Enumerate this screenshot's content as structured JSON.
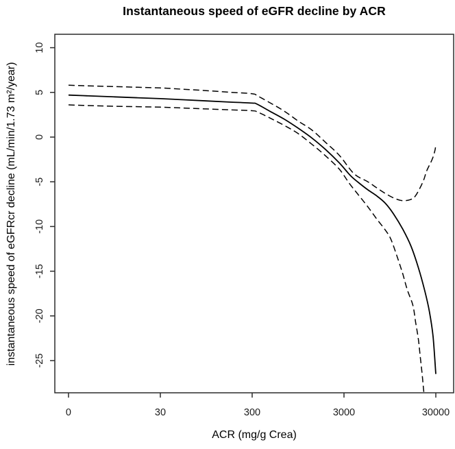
{
  "chart_data": {
    "type": "line",
    "title": "Instantaneous speed of eGFR decline by ACR",
    "xlabel": "ACR (mg/g Crea)",
    "ylabel": "instantaneous speed of eGFRcr decline (mL/min/1.73 m²/year)",
    "grid": false,
    "legend": null,
    "colors": {
      "line": "#000000",
      "box": "#2a2a2a",
      "background": "#ffffff"
    },
    "x_axis": {
      "scale": "log-like, one decade per tick step, equal spacing",
      "tick_labels": [
        "0",
        "30",
        "300",
        "3000",
        "30000"
      ],
      "tick_positions": [
        0,
        1,
        2,
        3,
        4
      ],
      "view_range": [
        -0.149,
        4.194
      ]
    },
    "y_axis": {
      "tick_labels": [
        "10",
        "5",
        "0",
        "-5",
        "-10",
        "-15",
        "-20",
        "-25"
      ],
      "tick_values": [
        10,
        5,
        0,
        -5,
        -10,
        -15,
        -20,
        -25
      ],
      "view_range": [
        -28.6,
        11.5
      ]
    },
    "series": [
      {
        "name": "estimate",
        "style": "solid",
        "points": [
          [
            0,
            4.7
          ],
          [
            0.25,
            4.6
          ],
          [
            0.5,
            4.5
          ],
          [
            0.75,
            4.4
          ],
          [
            1,
            4.3
          ],
          [
            1.25,
            4.18
          ],
          [
            1.5,
            4.05
          ],
          [
            1.75,
            3.92
          ],
          [
            2,
            3.8
          ],
          [
            2.05,
            3.7
          ],
          [
            2.2,
            2.85
          ],
          [
            2.35,
            2.0
          ],
          [
            2.5,
            1.0
          ],
          [
            2.65,
            -0.1
          ],
          [
            2.8,
            -1.4
          ],
          [
            2.95,
            -2.9
          ],
          [
            3.07,
            -4.3
          ],
          [
            3.16,
            -5.1
          ],
          [
            3.26,
            -5.9
          ],
          [
            3.36,
            -6.6
          ],
          [
            3.45,
            -7.4
          ],
          [
            3.54,
            -8.6
          ],
          [
            3.64,
            -10.3
          ],
          [
            3.73,
            -12.2
          ],
          [
            3.81,
            -14.6
          ],
          [
            3.88,
            -17.2
          ],
          [
            3.93,
            -19.5
          ],
          [
            3.97,
            -22.3
          ],
          [
            4,
            -26.5
          ]
        ]
      },
      {
        "name": "upper confidence band",
        "style": "dashed",
        "points": [
          [
            0,
            5.8
          ],
          [
            0.25,
            5.72
          ],
          [
            0.5,
            5.65
          ],
          [
            0.75,
            5.57
          ],
          [
            1,
            5.5
          ],
          [
            1.25,
            5.35
          ],
          [
            1.5,
            5.2
          ],
          [
            1.75,
            5.02
          ],
          [
            2,
            4.85
          ],
          [
            2.06,
            4.6
          ],
          [
            2.2,
            3.8
          ],
          [
            2.35,
            2.9
          ],
          [
            2.5,
            1.8
          ],
          [
            2.65,
            0.8
          ],
          [
            2.8,
            -0.6
          ],
          [
            2.95,
            -2.05
          ],
          [
            3.11,
            -4.1
          ],
          [
            3.26,
            -5.0
          ],
          [
            3.36,
            -5.7
          ],
          [
            3.45,
            -6.3
          ],
          [
            3.54,
            -6.8
          ],
          [
            3.63,
            -7.1
          ],
          [
            3.72,
            -7.0
          ],
          [
            3.78,
            -6.55
          ],
          [
            3.86,
            -5.0
          ],
          [
            3.9,
            -3.8
          ],
          [
            3.96,
            -2.5
          ],
          [
            3.99,
            -1.5
          ],
          [
            4,
            -0.8
          ]
        ]
      },
      {
        "name": "lower confidence band",
        "style": "dashed",
        "points": [
          [
            0,
            3.6
          ],
          [
            0.25,
            3.52
          ],
          [
            0.5,
            3.45
          ],
          [
            0.75,
            3.4
          ],
          [
            1,
            3.35
          ],
          [
            1.25,
            3.25
          ],
          [
            1.5,
            3.15
          ],
          [
            1.75,
            3.05
          ],
          [
            2,
            2.95
          ],
          [
            2.06,
            2.8
          ],
          [
            2.2,
            2.1
          ],
          [
            2.35,
            1.3
          ],
          [
            2.5,
            0.4
          ],
          [
            2.65,
            -0.8
          ],
          [
            2.8,
            -2.1
          ],
          [
            2.95,
            -3.6
          ],
          [
            3.06,
            -5.2
          ],
          [
            3.16,
            -6.5
          ],
          [
            3.26,
            -7.8
          ],
          [
            3.36,
            -9.2
          ],
          [
            3.45,
            -10.4
          ],
          [
            3.51,
            -11.4
          ],
          [
            3.58,
            -13.4
          ],
          [
            3.64,
            -15.3
          ],
          [
            3.69,
            -17.1
          ],
          [
            3.75,
            -18.8
          ],
          [
            3.78,
            -20.7
          ],
          [
            3.81,
            -22.6
          ],
          [
            3.83,
            -24.5
          ],
          [
            3.85,
            -26.4
          ],
          [
            3.87,
            -28.6
          ]
        ]
      }
    ]
  }
}
